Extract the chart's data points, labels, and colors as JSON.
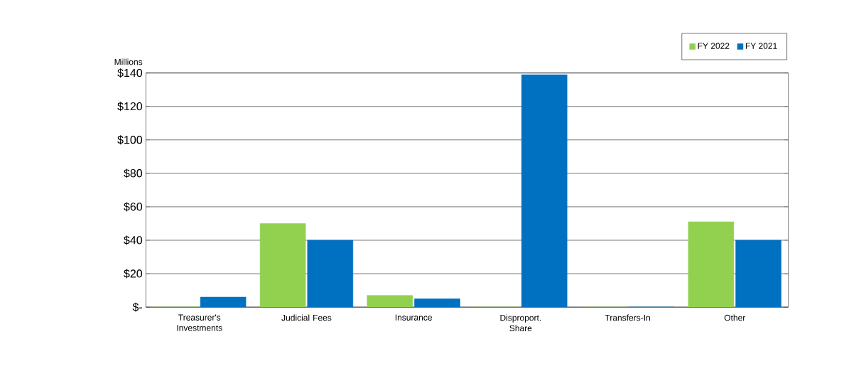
{
  "chart_data": {
    "type": "bar",
    "ylabel": "Millions",
    "categories": [
      "Treasurer's Investments",
      "Judicial Fees",
      "Insurance",
      "Disproport. Share",
      "Transfers-In",
      "Other"
    ],
    "series": [
      {
        "name": "FY 2022",
        "color": "#92d050",
        "values": [
          0,
          50,
          7,
          0,
          0,
          51
        ]
      },
      {
        "name": "FY 2021",
        "color": "#0070c0",
        "values": [
          6,
          40,
          5,
          139,
          0,
          40
        ]
      }
    ],
    "ylim": [
      0,
      140
    ],
    "yticks": [
      {
        "value": 0,
        "label": "$-"
      },
      {
        "value": 20,
        "label": "$20"
      },
      {
        "value": 40,
        "label": "$40"
      },
      {
        "value": 60,
        "label": "$60"
      },
      {
        "value": 80,
        "label": "$80"
      },
      {
        "value": 100,
        "label": "$100"
      },
      {
        "value": 120,
        "label": "$120"
      },
      {
        "value": 140,
        "label": "$140"
      }
    ],
    "grid": "y",
    "legend": "top right"
  }
}
